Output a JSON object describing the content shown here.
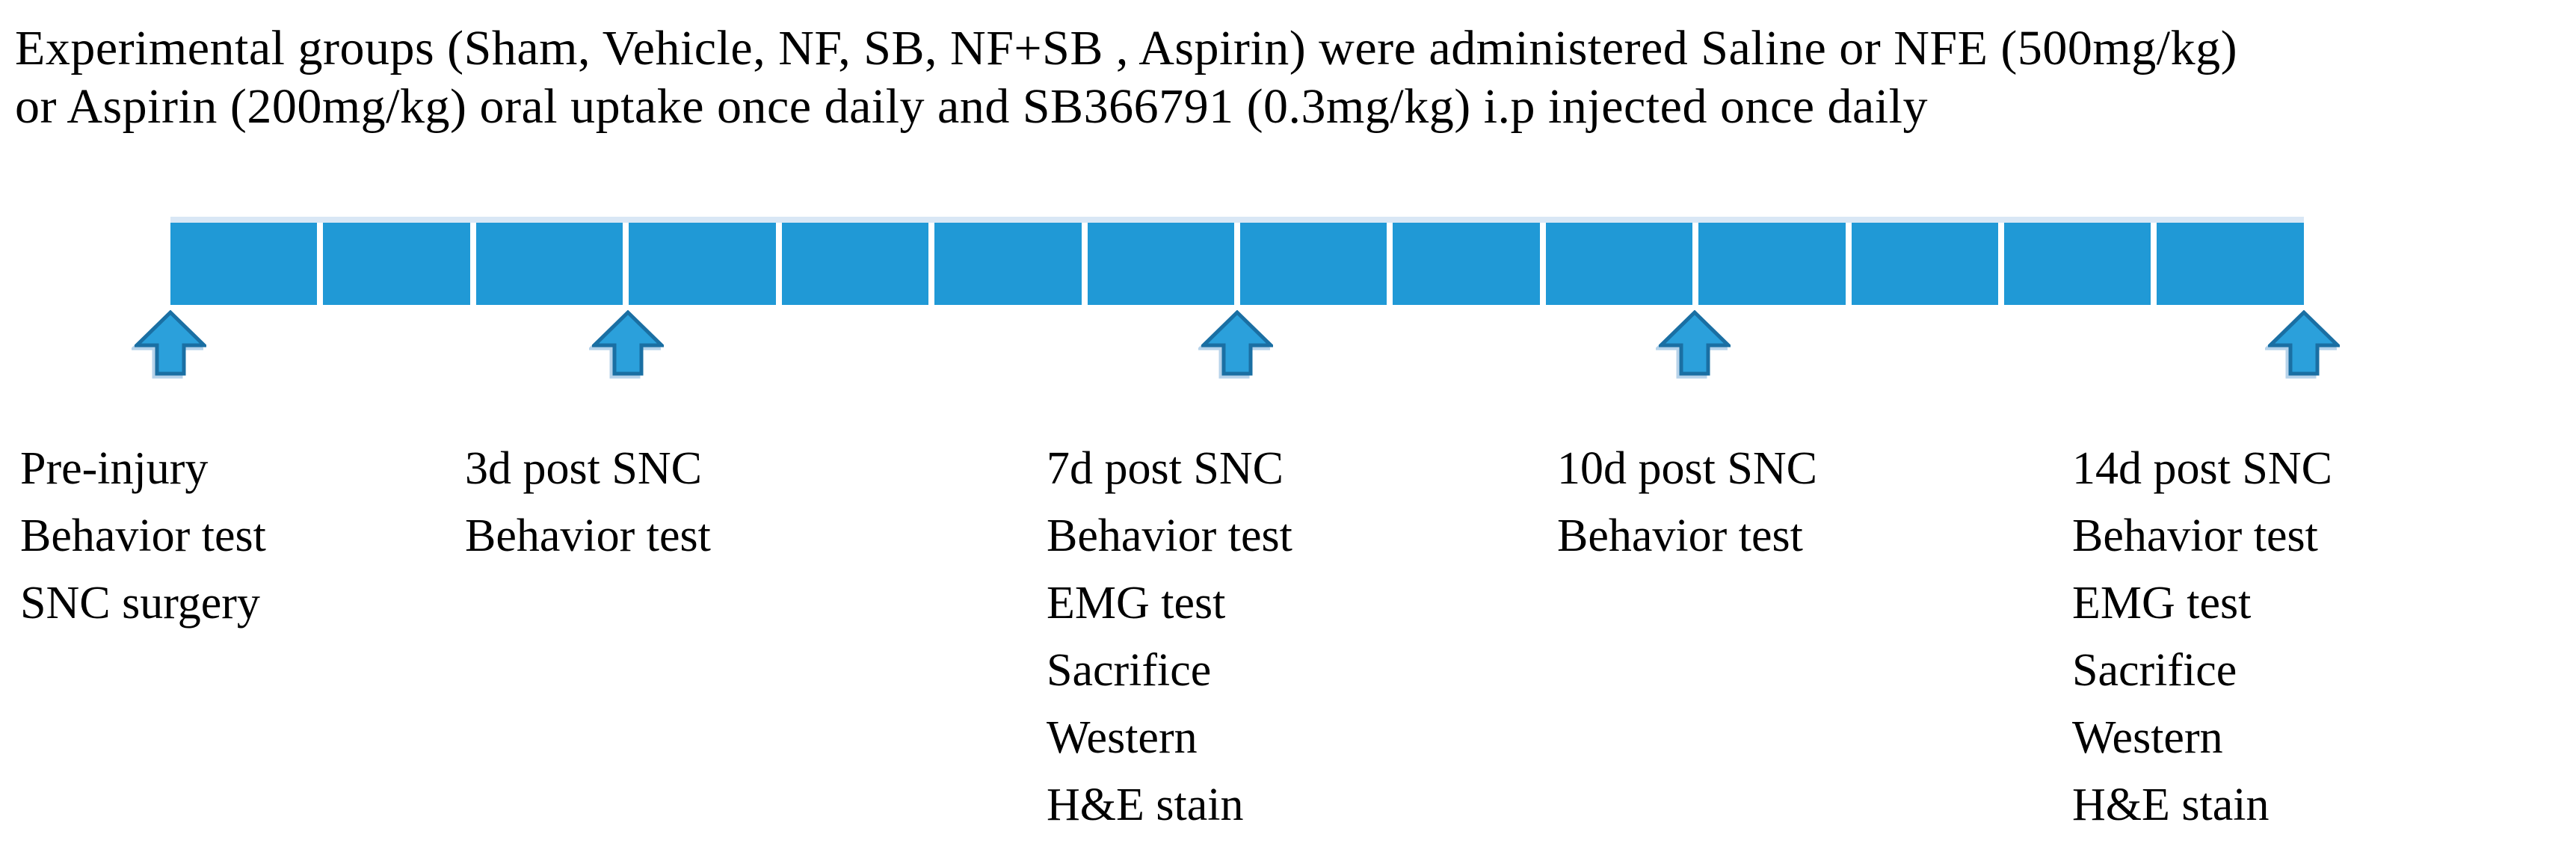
{
  "caption": {
    "lines": [
      "Experimental groups (Sham, Vehicle, NF, SB, NF+SB , Aspirin) were administered Saline or NFE (500mg/kg)",
      "or Aspirin (200mg/kg) oral uptake once daily and SB366791 (0.3mg/kg) i.p injected once daily"
    ]
  },
  "timeline": {
    "type": "timeline",
    "days_total": 14,
    "segment_count": 14,
    "bar_color": "#2099D6",
    "bar_top_highlight_color": "#D9E7F5",
    "arrow_fill_color": "#2BA0DB",
    "arrow_outline_color": "#1A6FA3"
  },
  "events": [
    {
      "day": 0,
      "lines": [
        "Pre-injury",
        "Behavior test",
        "SNC surgery"
      ]
    },
    {
      "day": 3,
      "lines": [
        "3d post SNC",
        "Behavior test"
      ]
    },
    {
      "day": 7,
      "lines": [
        "7d post SNC",
        "Behavior test",
        "EMG test",
        "Sacrifice",
        "Western",
        "H&E stain"
      ]
    },
    {
      "day": 10,
      "lines": [
        "10d post SNC",
        "Behavior test"
      ]
    },
    {
      "day": 14,
      "lines": [
        "14d post SNC",
        "Behavior test",
        "EMG test",
        "Sacrifice",
        "Western",
        "H&E stain"
      ]
    }
  ]
}
